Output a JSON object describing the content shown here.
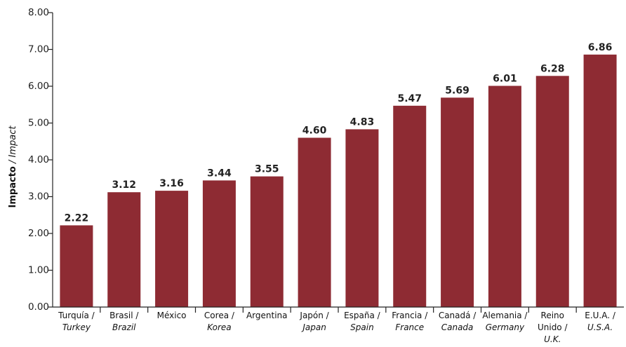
{
  "chart_data": {
    "type": "bar",
    "ylabel_es": "Impacto",
    "ylabel_sep": " / ",
    "ylabel_en": "Impact",
    "ylim": [
      0,
      8
    ],
    "yticks": [
      "0.00",
      "1.00",
      "2.00",
      "3.00",
      "4.00",
      "5.00",
      "6.00",
      "7.00",
      "8.00"
    ],
    "bar_color": "#8e2b33",
    "categories": [
      {
        "es": "Turquía /",
        "en": "Turkey"
      },
      {
        "es": "Brasil /",
        "en": "Brazil"
      },
      {
        "es": "México",
        "en": ""
      },
      {
        "es": "Corea /",
        "en": "Korea"
      },
      {
        "es": "Argentina",
        "en": ""
      },
      {
        "es": "Japón /",
        "en": "Japan"
      },
      {
        "es": "España /",
        "en": "Spain"
      },
      {
        "es": "Francia /",
        "en": "France"
      },
      {
        "es": "Canadá /",
        "en": "Canada"
      },
      {
        "es": "Alemania /",
        "en": "Germany"
      },
      {
        "es": "Reino|Unido /",
        "en": "U.K."
      },
      {
        "es": "E.U.A. /",
        "en": "U.S.A."
      }
    ],
    "values": [
      2.22,
      3.12,
      3.16,
      3.44,
      3.55,
      4.6,
      4.83,
      5.47,
      5.69,
      6.01,
      6.28,
      6.86
    ],
    "value_labels": [
      "2.22",
      "3.12",
      "3.16",
      "3.44",
      "3.55",
      "4.60",
      "4.83",
      "5.47",
      "5.69",
      "6.01",
      "6.28",
      "6.86"
    ]
  }
}
